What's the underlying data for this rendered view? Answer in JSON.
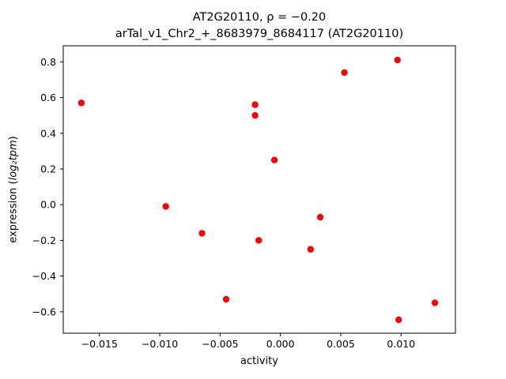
{
  "figure": {
    "title_line1": "AT2G20110, ρ = −0.20",
    "title_line2": "arTal_v1_Chr2_+_8683979_8684117 (AT2G20110)"
  },
  "chart_data": {
    "type": "scatter",
    "title": "AT2G20110, ρ = −0.20",
    "subtitle": "arTal_v1_Chr2_+_8683979_8684117 (AT2G20110)",
    "xlabel": "activity",
    "ylabel": "expression (log₂tpm)",
    "ylabel_prefix": "expression (",
    "ylabel_math": "log₂tpm",
    "ylabel_suffix": ")",
    "correlation_rho": -0.2,
    "marker_color": "#ff0000",
    "legend": "none",
    "grid": false,
    "xlim": [
      -0.018,
      0.0145
    ],
    "ylim": [
      -0.72,
      0.89
    ],
    "xticks": [
      {
        "value": -0.015,
        "label": "−0.015"
      },
      {
        "value": -0.01,
        "label": "−0.010"
      },
      {
        "value": -0.005,
        "label": "−0.005"
      },
      {
        "value": 0.0,
        "label": "0.000"
      },
      {
        "value": 0.005,
        "label": "0.005"
      },
      {
        "value": 0.01,
        "label": "0.010"
      }
    ],
    "yticks": [
      {
        "value": -0.6,
        "label": "−0.6"
      },
      {
        "value": -0.4,
        "label": "−0.4"
      },
      {
        "value": -0.2,
        "label": "−0.2"
      },
      {
        "value": 0.0,
        "label": "0.0"
      },
      {
        "value": 0.2,
        "label": "0.2"
      },
      {
        "value": 0.4,
        "label": "0.4"
      },
      {
        "value": 0.6,
        "label": "0.6"
      },
      {
        "value": 0.8,
        "label": "0.8"
      }
    ],
    "points": [
      {
        "x": -0.0165,
        "y": 0.57
      },
      {
        "x": -0.0095,
        "y": -0.01
      },
      {
        "x": -0.0065,
        "y": -0.16
      },
      {
        "x": -0.0045,
        "y": -0.53
      },
      {
        "x": -0.0021,
        "y": 0.56
      },
      {
        "x": -0.0021,
        "y": 0.5
      },
      {
        "x": -0.0018,
        "y": -0.2
      },
      {
        "x": -0.0005,
        "y": 0.25
      },
      {
        "x": 0.0025,
        "y": -0.25
      },
      {
        "x": 0.0033,
        "y": -0.07
      },
      {
        "x": 0.0053,
        "y": 0.74
      },
      {
        "x": 0.0097,
        "y": 0.81
      },
      {
        "x": 0.0098,
        "y": -0.645
      },
      {
        "x": 0.0128,
        "y": -0.55
      }
    ]
  }
}
